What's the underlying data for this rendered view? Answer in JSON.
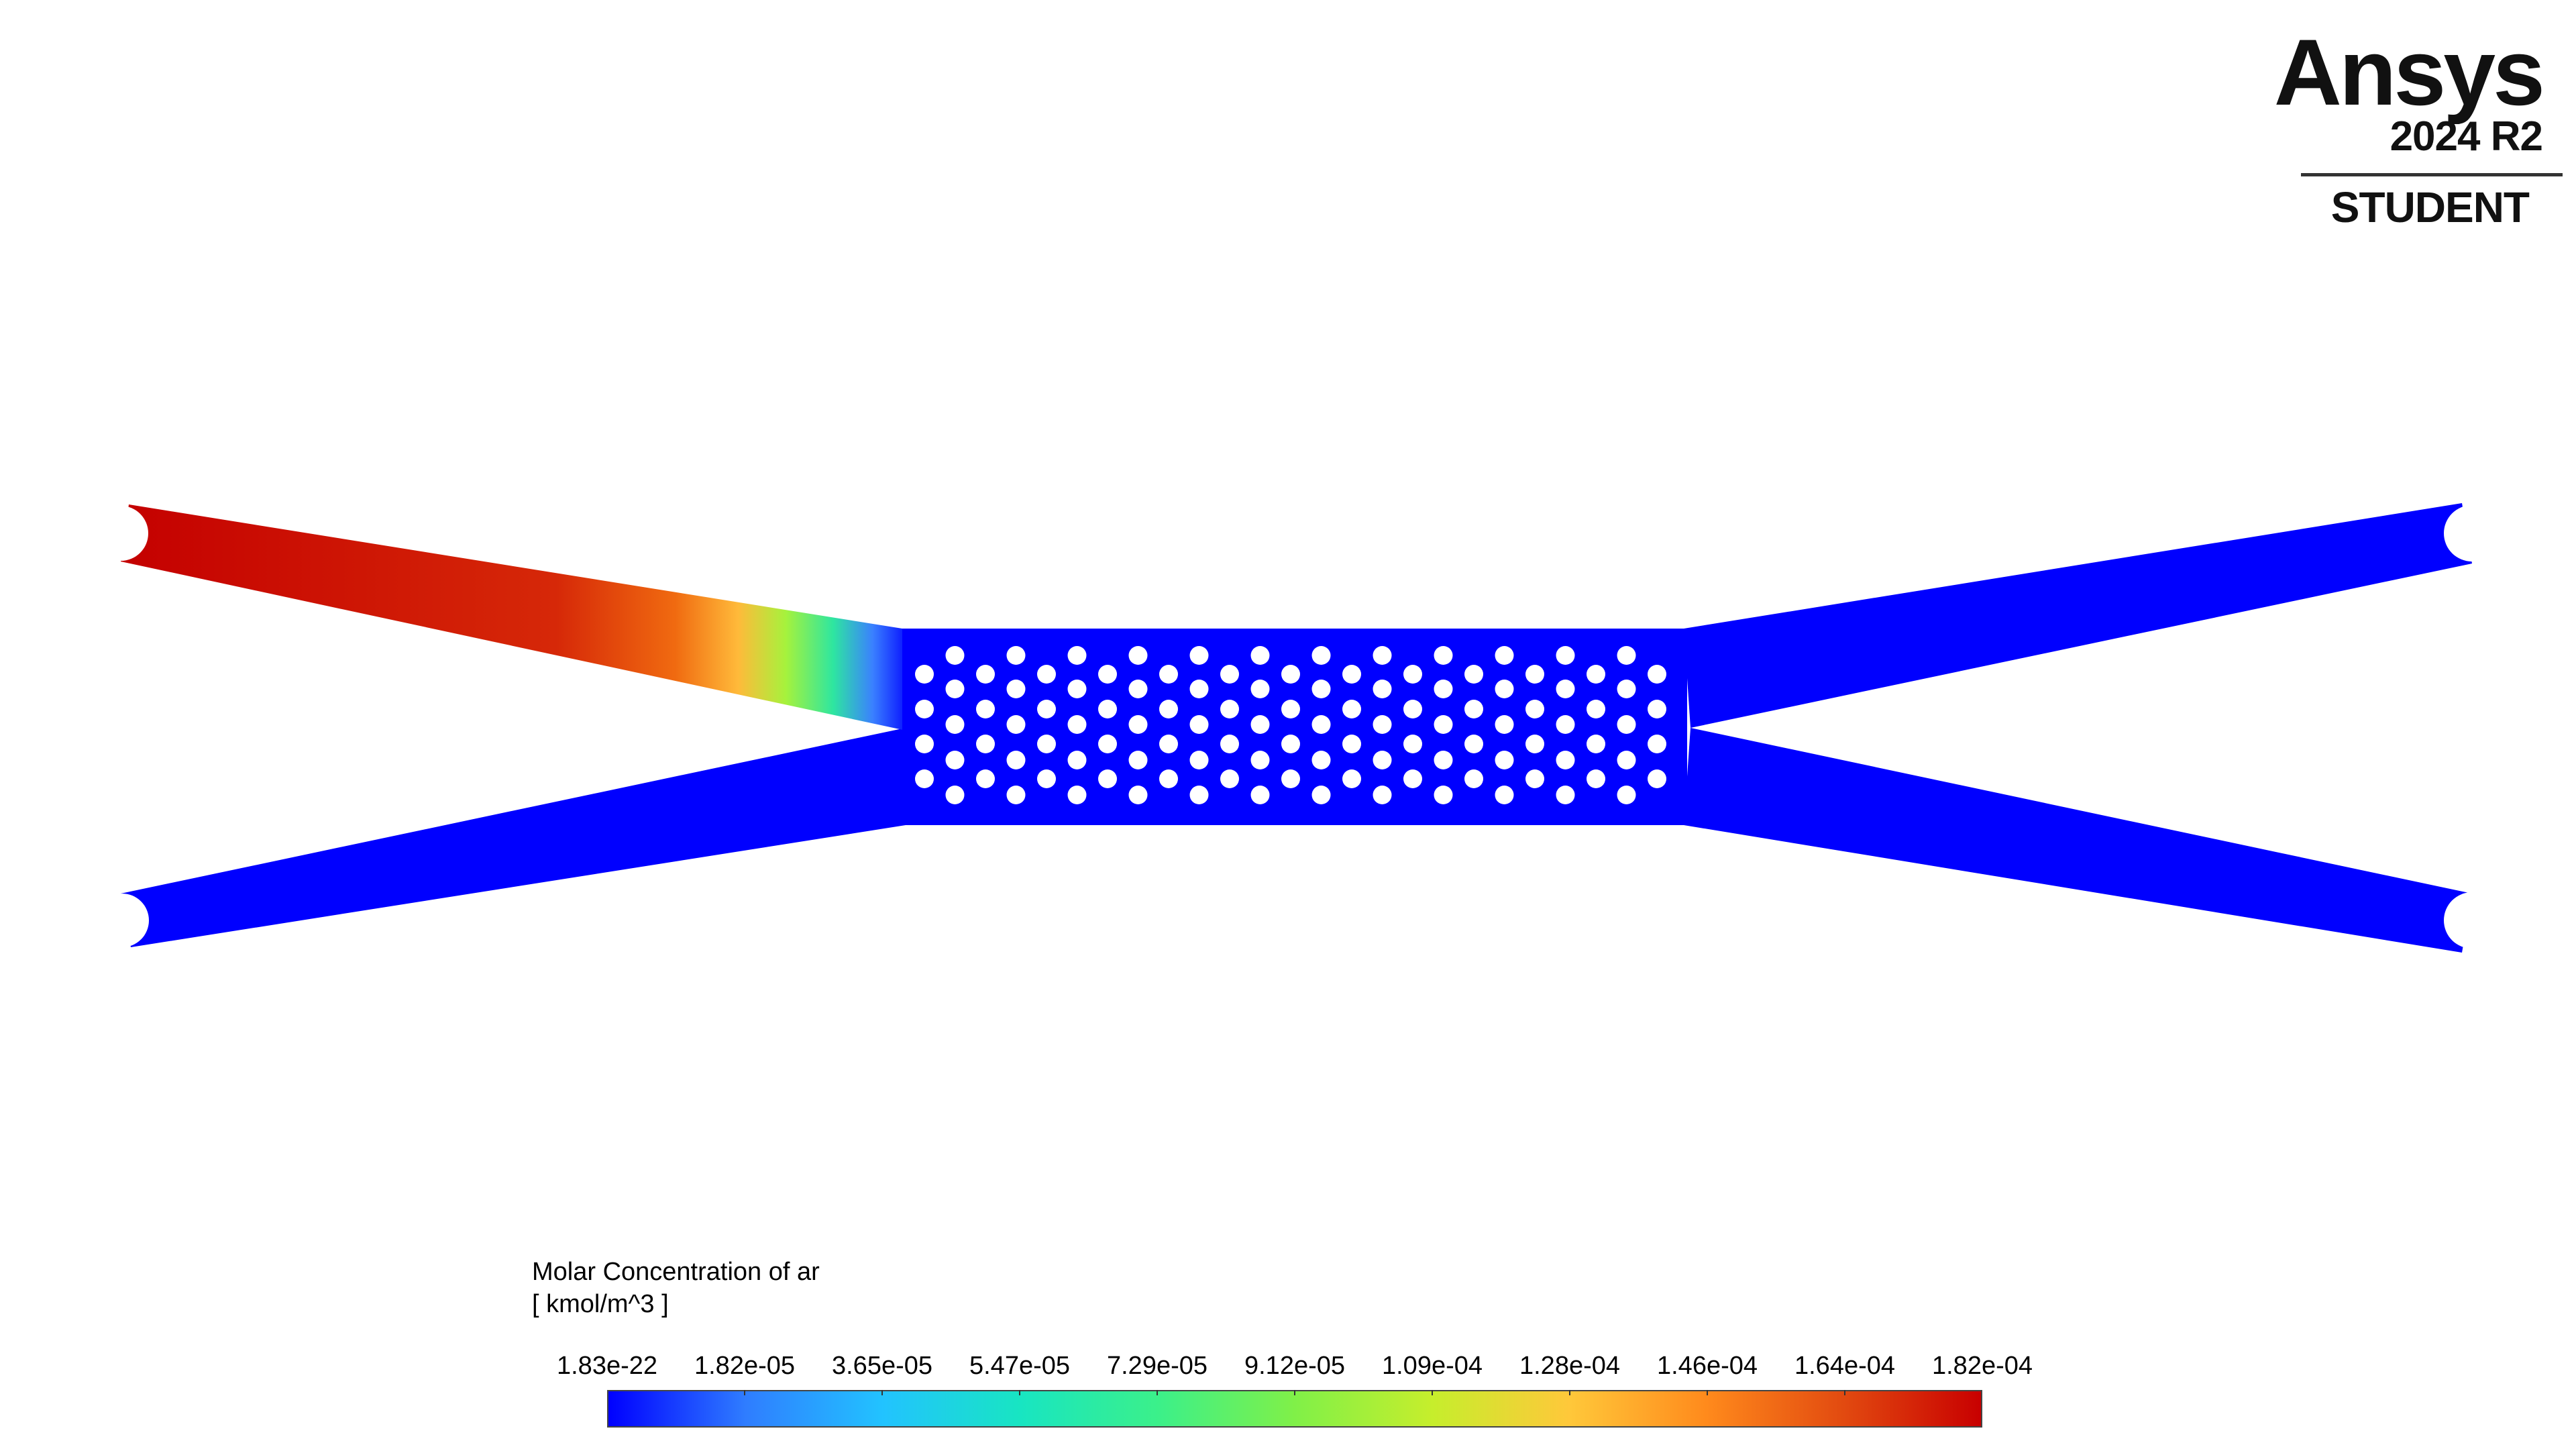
{
  "brand": {
    "name": "Ansys",
    "version": "2024 R2",
    "edition": "STUDENT"
  },
  "legend": {
    "title": "Molar Concentration of ar",
    "units": "[ kmol/m^3 ]",
    "ticks": [
      "1.83e-22",
      "1.82e-05",
      "3.65e-05",
      "5.47e-05",
      "7.29e-05",
      "9.12e-05",
      "1.09e-04",
      "1.28e-04",
      "1.46e-04",
      "1.64e-04",
      "1.82e-04"
    ],
    "colormap": [
      "#0000ff",
      "#2f7dff",
      "#22c3ff",
      "#18e5c2",
      "#3bf08a",
      "#80f048",
      "#c6ee2c",
      "#ffc83a",
      "#ff8a1c",
      "#e24a10",
      "#c80000"
    ]
  },
  "contour": {
    "field": "Molar Concentration of ar",
    "low_color": "#0000ff",
    "high_color": "#c80000",
    "inlet_upper_left_value": "1.82e-04",
    "other_branches_value": "1.83e-22"
  }
}
